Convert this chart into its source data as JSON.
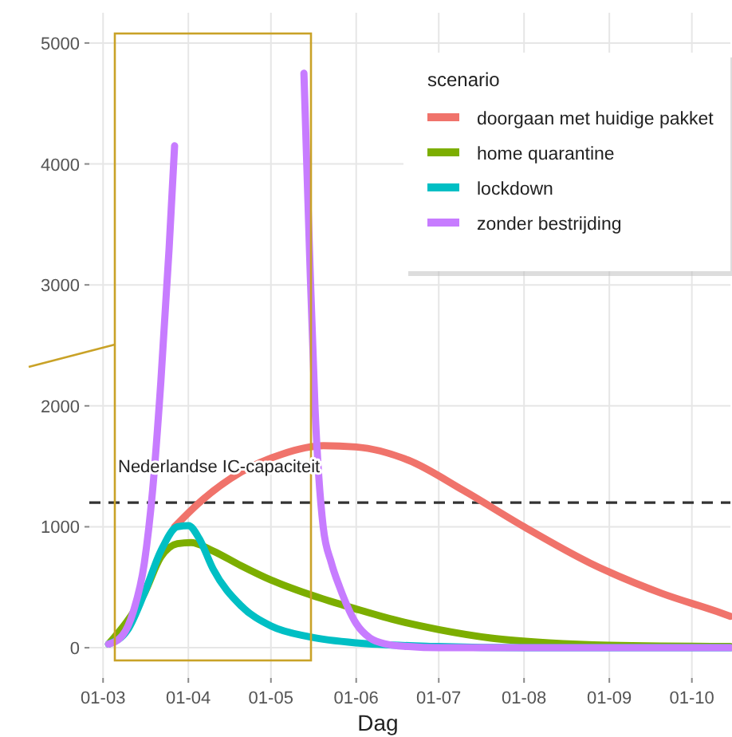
{
  "chart_data": {
    "type": "line",
    "xlabel": "Dag",
    "legend_title": "scenario",
    "legend": "top right",
    "grid": true,
    "line_style": "solid",
    "marker": "none",
    "xlim": [
      "--02-25",
      "--10-15"
    ],
    "ylim": [
      -250,
      5250
    ],
    "xticks": [
      {
        "value": "--03-01",
        "label": "01-03"
      },
      {
        "value": "--04-01",
        "label": "01-04"
      },
      {
        "value": "--05-01",
        "label": "01-05"
      },
      {
        "value": "--06-01",
        "label": "01-06"
      },
      {
        "value": "--07-01",
        "label": "01-07"
      },
      {
        "value": "--08-01",
        "label": "01-08"
      },
      {
        "value": "--09-01",
        "label": "01-09"
      },
      {
        "value": "--10-01",
        "label": "01-10"
      }
    ],
    "yticks": [
      0,
      1000,
      2000,
      3000,
      4000,
      5000
    ],
    "ref_lines": [
      {
        "axis": "y",
        "value": 1200,
        "label": "Nederlandse IC-capaciteit",
        "color": "#333333",
        "line_style": "dashed"
      }
    ],
    "series": [
      {
        "name": "doorgaan met huidige pakket",
        "color": "#f0736b",
        "x": [
          "--03-27",
          "--04-05",
          "--04-20",
          "--05-05",
          "--05-20",
          "--06-01",
          "--06-20",
          "--07-10",
          "--08-01",
          "--08-25",
          "--09-20",
          "--10-10",
          "--10-15"
        ],
        "values": [
          1000,
          1200,
          1450,
          1600,
          1670,
          1660,
          1550,
          1300,
          1000,
          700,
          450,
          300,
          260
        ]
      },
      {
        "name": "home quarantine",
        "color": "#7cae00",
        "x": [
          "--03-03",
          "--03-16",
          "--03-22",
          "--03-28",
          "--04-02",
          "--04-10",
          "--04-20",
          "--05-01",
          "--05-15",
          "--06-01",
          "--06-15",
          "--07-01",
          "--07-20",
          "--08-10",
          "--09-01",
          "--10-15"
        ],
        "values": [
          30,
          450,
          750,
          860,
          870,
          800,
          680,
          560,
          440,
          320,
          230,
          150,
          80,
          40,
          20,
          10
        ]
      },
      {
        "name": "lockdown",
        "color": "#00bfc4",
        "x": [
          "--03-03",
          "--03-10",
          "--03-16",
          "--03-22",
          "--03-28",
          "--04-01",
          "--04-05",
          "--04-10",
          "--04-20",
          "--05-01",
          "--05-15",
          "--06-01",
          "--07-01",
          "--08-01",
          "--10-15"
        ],
        "values": [
          30,
          150,
          450,
          800,
          1000,
          1010,
          900,
          650,
          350,
          180,
          90,
          40,
          10,
          0,
          0
        ]
      },
      {
        "name": "zonder bestrijding",
        "color": "#c77cff",
        "x": [
          "--03-03",
          "--03-08",
          "--03-12",
          "--03-16",
          "--03-19",
          "--03-22",
          "--03-25",
          "--03-27",
          "--04-20",
          "--05-13",
          "--05-15",
          "--05-17",
          "--05-20",
          "--05-23",
          "--05-26",
          "--06-01",
          "--06-06",
          "--06-12",
          "--06-20",
          "--07-01",
          "--08-01",
          "--09-01",
          "--10-01",
          "--10-15"
        ],
        "values": [
          30,
          100,
          300,
          700,
          1300,
          2200,
          3300,
          4150,
          null,
          4750,
          3300,
          2000,
          1000,
          700,
          500,
          200,
          80,
          30,
          10,
          0,
          0,
          0,
          0,
          0
        ]
      }
    ]
  }
}
